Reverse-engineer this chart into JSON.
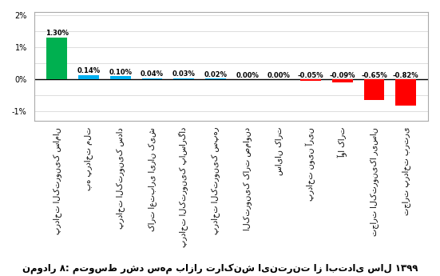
{
  "categories": [
    "پرداخت الکترونیک سامان",
    "به پرداخت ملت",
    "پرداخت الکترونیک سداد",
    "کارت اعتباری ایران کیش",
    "پرداخت الکترونیک پاسارگاد",
    "پرداخت الکترونیک سپهر",
    "الکترونیک کارت صماوند",
    "سایان کارت",
    "پرداخت نوین آرین",
    "آوا کارت",
    "تجارت الکترونیکا ریسان",
    "تجارت پرداخت برتری"
  ],
  "values": [
    0.013,
    0.0014,
    0.001,
    0.0004,
    0.0003,
    0.0002,
    0.0,
    0.0,
    -0.0005,
    -0.0009,
    -0.0065,
    -0.0082
  ],
  "labels": [
    "1.30%",
    "0.14%",
    "0.10%",
    "0.04%",
    "0.03%",
    "0.02%",
    "0.00%",
    "0.00%",
    "-0.05%",
    "-0.09%",
    "-0.65%",
    "-0.82%"
  ],
  "colors": [
    "#00b050",
    "#00b0f0",
    "#00b0f0",
    "#00b0f0",
    "#00b0f0",
    "#00b0f0",
    "#00b0f0",
    "#00b0f0",
    "#ff0000",
    "#ff0000",
    "#ff0000",
    "#ff0000"
  ],
  "ytick_vals": [
    -0.01,
    -0.005,
    0.0,
    0.005,
    0.01,
    0.015,
    0.02
  ],
  "ytick_labels": [
    "-1%",
    "",
    "0%",
    "",
    "1%",
    "",
    "2%"
  ],
  "ylim": [
    -0.013,
    0.021
  ],
  "caption": "نمودار ۸: متوسط رشد سهم بازار تراکنش اینترنت از ابتدای سال ۱۳۹۹",
  "background_color": "#ffffff",
  "bar_width": 0.65,
  "grid_color": "#d0d0d0",
  "label_fontsize": 6.0,
  "tick_fontsize": 7,
  "caption_fontsize": 8.5
}
